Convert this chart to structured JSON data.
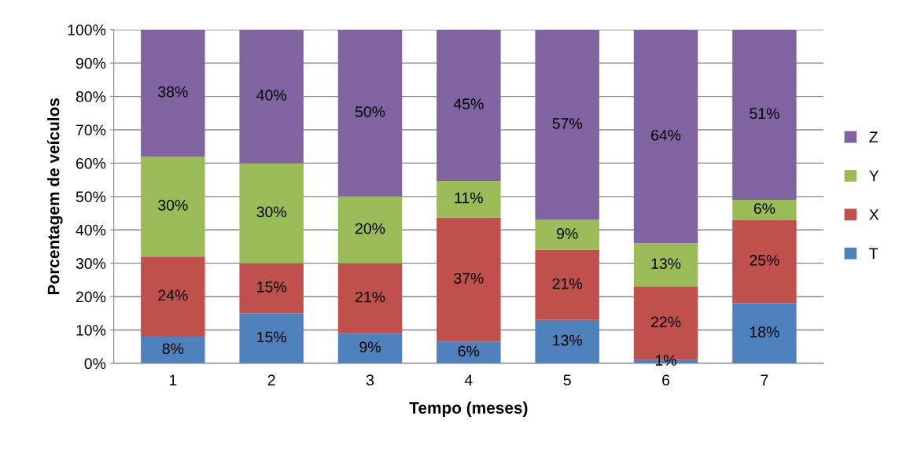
{
  "chart_data": {
    "type": "bar",
    "stacked": true,
    "xlabel": "Tempo (meses)",
    "ylabel": "Porcentagem de veículos",
    "categories": [
      "1",
      "2",
      "3",
      "4",
      "5",
      "6",
      "7"
    ],
    "series": [
      {
        "name": "T",
        "color": "#4f81bd",
        "values": [
          8,
          15,
          9,
          6.5,
          13,
          1,
          18
        ],
        "value_labels": [
          "8%",
          "15%",
          "9%",
          "6%",
          "13%",
          "1%",
          "18%"
        ]
      },
      {
        "name": "X",
        "color": "#c0504d",
        "values": [
          24,
          15,
          21,
          37.2,
          21,
          22,
          25
        ],
        "value_labels": [
          "24%",
          "15%",
          "21%",
          "37%",
          "21%",
          "22%",
          "25%"
        ]
      },
      {
        "name": "Y",
        "color": "#9bbb59",
        "values": [
          30,
          30,
          20,
          11,
          9,
          13,
          6
        ],
        "value_labels": [
          "30%",
          "30%",
          "20%",
          "11%",
          "9%",
          "13%",
          "6%"
        ]
      },
      {
        "name": "Z",
        "color": "#8064a2",
        "values": [
          38,
          40,
          50,
          45.3,
          57,
          64,
          51
        ],
        "value_labels": [
          "38%",
          "40%",
          "50%",
          "45%",
          "57%",
          "64%",
          "51%"
        ]
      }
    ],
    "ylim": [
      0,
      100
    ],
    "yticks": [
      {
        "value": 0,
        "label": "0%"
      },
      {
        "value": 10,
        "label": "10%"
      },
      {
        "value": 20,
        "label": "20%"
      },
      {
        "value": 30,
        "label": "30%"
      },
      {
        "value": 40,
        "label": "40%"
      },
      {
        "value": 50,
        "label": "50%"
      },
      {
        "value": 60,
        "label": "60%"
      },
      {
        "value": 70,
        "label": "70%"
      },
      {
        "value": 80,
        "label": "80%"
      },
      {
        "value": 90,
        "label": "90%"
      },
      {
        "value": 100,
        "label": "100%"
      }
    ],
    "grid": "y",
    "legend": "right"
  }
}
